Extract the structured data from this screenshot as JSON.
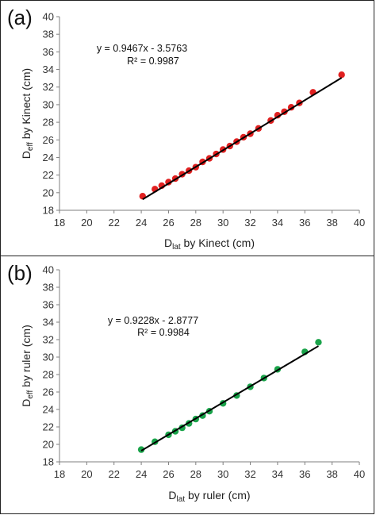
{
  "chart_data": [
    {
      "type": "scatter",
      "panel_label": "(a)",
      "xlabel": {
        "main": "D",
        "sub": "lat",
        "rest": " by Kinect (cm)"
      },
      "ylabel": {
        "main": "D",
        "sub": "eff",
        "rest": " by Kinect (cm)"
      },
      "xlim": [
        18,
        40
      ],
      "ylim": [
        18,
        40
      ],
      "xticks": [
        "18",
        "20",
        "22",
        "24",
        "26",
        "28",
        "30",
        "32",
        "34",
        "36",
        "38",
        "40"
      ],
      "yticks": [
        "18",
        "20",
        "22",
        "24",
        "26",
        "28",
        "30",
        "32",
        "34",
        "36",
        "38",
        "40"
      ],
      "equation": "y = 0.9467x - 3.5763",
      "r2": "R² = 0.9987",
      "trend": {
        "slope": 0.9467,
        "intercept": -3.5763,
        "x_range": [
          24.1,
          38.7
        ]
      },
      "marker_color": "#e02020",
      "series": [
        {
          "x": [
            24.1,
            25.0,
            25.5,
            26.0,
            26.5,
            27.0,
            27.5,
            28.0,
            28.5,
            29.0,
            29.5,
            30.0,
            30.5,
            31.0,
            31.5,
            32.0,
            32.6,
            33.5,
            34.0,
            34.5,
            35.0,
            35.6,
            36.6,
            38.7
          ],
          "y": [
            19.6,
            20.4,
            20.8,
            21.2,
            21.6,
            22.1,
            22.5,
            22.9,
            23.5,
            23.9,
            24.4,
            24.9,
            25.3,
            25.8,
            26.3,
            26.7,
            27.3,
            28.2,
            28.8,
            29.2,
            29.7,
            30.2,
            31.4,
            33.4
          ]
        }
      ]
    },
    {
      "type": "scatter",
      "panel_label": "(b)",
      "xlabel": {
        "main": "D",
        "sub": "lat",
        "rest": " by ruler (cm)"
      },
      "ylabel": {
        "main": "D",
        "sub": "eff",
        "rest": " by ruler (cm)"
      },
      "xlim": [
        18,
        40
      ],
      "ylim": [
        18,
        40
      ],
      "xticks": [
        "18",
        "20",
        "22",
        "24",
        "26",
        "28",
        "30",
        "32",
        "34",
        "36",
        "38",
        "40"
      ],
      "yticks": [
        "18",
        "20",
        "22",
        "24",
        "26",
        "28",
        "30",
        "32",
        "34",
        "36",
        "38",
        "40"
      ],
      "equation": "y = 0.9228x - 2.8777",
      "r2": "R² = 0.9984",
      "trend": {
        "slope": 0.9228,
        "intercept": -2.8777,
        "x_range": [
          24.0,
          37.0
        ]
      },
      "marker_color": "#1aa34a",
      "series": [
        {
          "x": [
            24,
            25,
            26,
            26.5,
            27,
            27.5,
            28,
            28.5,
            29,
            30,
            31,
            32,
            33,
            34,
            36,
            37
          ],
          "y": [
            19.4,
            20.3,
            21.1,
            21.5,
            21.9,
            22.4,
            22.9,
            23.3,
            23.8,
            24.7,
            25.6,
            26.6,
            27.6,
            28.6,
            30.6,
            31.7
          ]
        }
      ]
    }
  ]
}
